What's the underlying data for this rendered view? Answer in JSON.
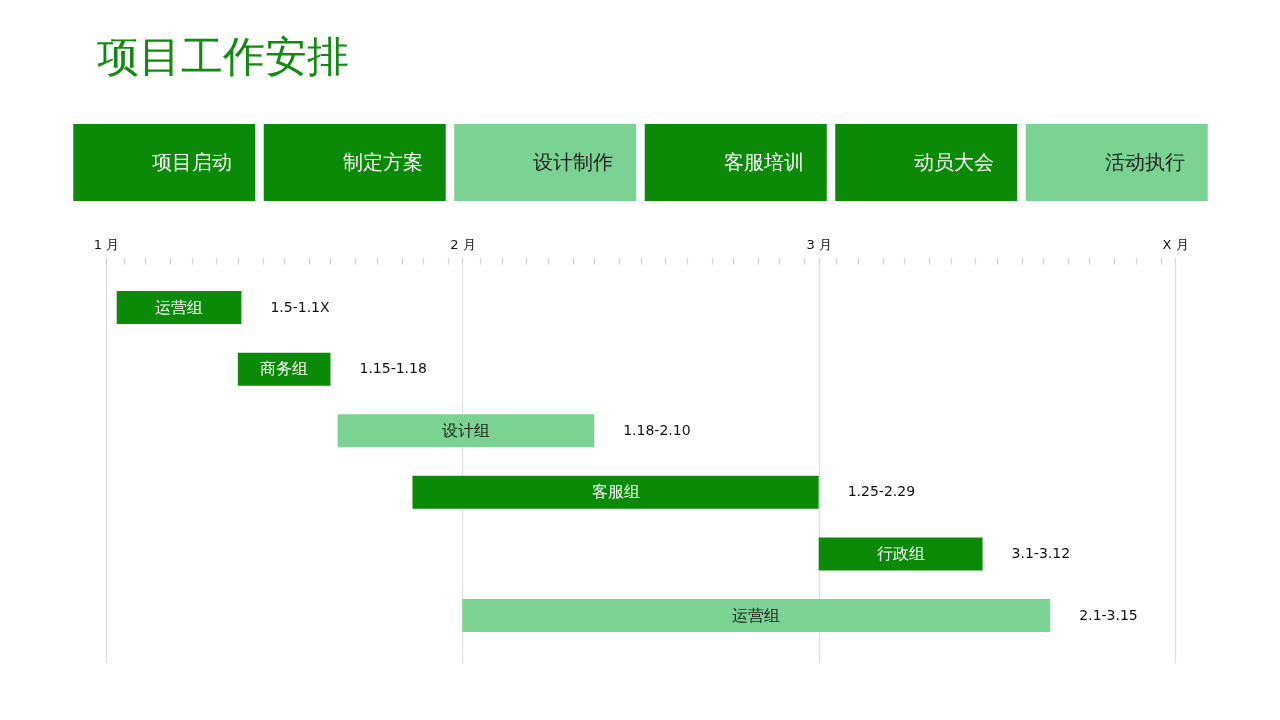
{
  "chart_data": [
    {
      "type": "other",
      "title": "项目工作安排",
      "categories": [
        "项目启动",
        "制定方案",
        "设计制作",
        "客服培训",
        "动员大会",
        "活动执行"
      ],
      "colors": [
        "#0b8a07",
        "#0b8a07",
        "#7bd393",
        "#0b8a07",
        "#0b8a07",
        "#7bd393"
      ]
    },
    {
      "type": "bar",
      "orientation": "horizontal",
      "categories": [
        "运营组",
        "商务组",
        "设计组",
        "客服组",
        "行政组",
        "运营组"
      ],
      "base": [
        1.03,
        1.37,
        1.65,
        1.86,
        3.0,
        2.0
      ],
      "values": [
        0.35,
        0.26,
        0.72,
        1.14,
        0.46,
        1.65
      ],
      "colors": [
        "#0b8a07",
        "#0b8a07",
        "#7bd393",
        "#0b8a07",
        "#0b8a07",
        "#7bd393"
      ],
      "value_labels": [
        "1.5-1.1X",
        "1.15-1.18",
        "1.18-2.10",
        "1.25-2.29",
        "3.1-3.12",
        "2.1-3.15"
      ],
      "xlim": [
        1,
        4
      ],
      "xticks": [
        {
          "value": 1,
          "label": "1 月"
        },
        {
          "value": 1.05,
          "label": null
        },
        {
          "value": 1.11,
          "label": null
        },
        {
          "value": 1.18,
          "label": null
        },
        {
          "value": 1.24,
          "label": null
        },
        {
          "value": 1.31,
          "label": null
        },
        {
          "value": 1.37,
          "label": null
        },
        {
          "value": 1.44,
          "label": null
        },
        {
          "value": 1.5,
          "label": null
        },
        {
          "value": 1.57,
          "label": null
        },
        {
          "value": 1.63,
          "label": null
        },
        {
          "value": 1.7,
          "label": null
        },
        {
          "value": 1.76,
          "label": null
        },
        {
          "value": 1.83,
          "label": null
        },
        {
          "value": 1.89,
          "label": null
        },
        {
          "value": 1.96,
          "label": null
        },
        {
          "value": 2,
          "label": "2 月"
        },
        {
          "value": 2.05,
          "label": null
        },
        {
          "value": 2.11,
          "label": null
        },
        {
          "value": 2.18,
          "label": null
        },
        {
          "value": 2.24,
          "label": null
        },
        {
          "value": 2.31,
          "label": null
        },
        {
          "value": 2.37,
          "label": null
        },
        {
          "value": 2.44,
          "label": null
        },
        {
          "value": 2.5,
          "label": null
        },
        {
          "value": 2.57,
          "label": null
        },
        {
          "value": 2.63,
          "label": null
        },
        {
          "value": 2.7,
          "label": null
        },
        {
          "value": 2.76,
          "label": null
        },
        {
          "value": 2.83,
          "label": null
        },
        {
          "value": 2.89,
          "label": null
        },
        {
          "value": 2.96,
          "label": null
        },
        {
          "value": 3,
          "label": "3 月"
        },
        {
          "value": 3.05,
          "label": null
        },
        {
          "value": 3.11,
          "label": null
        },
        {
          "value": 3.18,
          "label": null
        },
        {
          "value": 3.24,
          "label": null
        },
        {
          "value": 3.31,
          "label": null
        },
        {
          "value": 3.37,
          "label": null
        },
        {
          "value": 3.44,
          "label": null
        },
        {
          "value": 3.5,
          "label": null
        },
        {
          "value": 3.57,
          "label": null
        },
        {
          "value": 3.63,
          "label": null
        },
        {
          "value": 3.7,
          "label": null
        },
        {
          "value": 3.76,
          "label": null
        },
        {
          "value": 3.83,
          "label": null
        },
        {
          "value": 3.89,
          "label": null
        },
        {
          "value": 3.96,
          "label": null
        },
        {
          "value": 4,
          "label": "X 月"
        }
      ],
      "grid": "x"
    }
  ]
}
